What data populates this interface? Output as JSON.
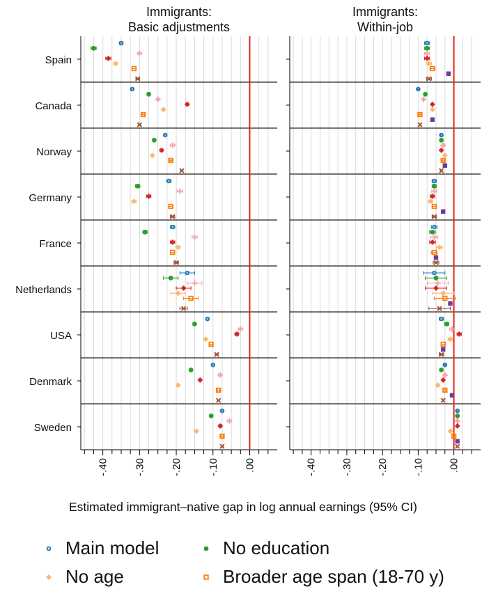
{
  "chart_data": {
    "type": "scatter",
    "xlabel": "Estimated immigrant–native gap in log annual earnings (95% CI)",
    "xlim": [
      -0.46,
      0.075
    ],
    "xticks": [
      -0.4,
      -0.3,
      -0.2,
      -0.1,
      0.0
    ],
    "xtick_labels": [
      "-.40",
      "-.30",
      "-.20",
      "-.10",
      ".00"
    ],
    "reference_line": 0,
    "grid": true,
    "countries": [
      "Spain",
      "Canada",
      "Norway",
      "Germany",
      "France",
      "Netherlands",
      "USA",
      "Denmark",
      "Sweden"
    ],
    "series": [
      {
        "name": "Main model",
        "key": "main",
        "color": "#1f77b4",
        "marker": "circle-open"
      },
      {
        "name": "No education",
        "key": "noedu",
        "color": "#2ca02c",
        "marker": "circle"
      },
      {
        "name": "",
        "key": "s3",
        "color": "#f4a0a8",
        "marker": "plus"
      },
      {
        "name": "",
        "key": "s4",
        "color": "#d62728",
        "marker": "diamond"
      },
      {
        "name": "No age",
        "key": "noage",
        "color": "#fdb870",
        "marker": "diamond-light"
      },
      {
        "name": "Broader age span (18-70 y)",
        "key": "broad",
        "color": "#ff7f0e",
        "marker": "square-open"
      },
      {
        "name": "",
        "key": "s7",
        "color": "#6a3d9a",
        "marker": "square"
      },
      {
        "name": "",
        "key": "s8",
        "color": "#a0522d",
        "marker": "x"
      }
    ],
    "panels": [
      {
        "title_line1": "Immigrants:",
        "title_line2": "Basic adjustments",
        "data": {
          "Spain": {
            "main": [
              -0.35,
              0.005
            ],
            "noedu": [
              -0.425,
              0.007
            ],
            "s3": [
              -0.3,
              0.005
            ],
            "s4": [
              -0.385,
              0.007
            ],
            "noage": [
              -0.365,
              0.005
            ],
            "broad": [
              -0.315,
              0.005
            ],
            "s8": [
              -0.305,
              0.005
            ]
          },
          "Canada": {
            "main": [
              -0.32,
              0.003
            ],
            "noedu": [
              -0.275,
              0.003
            ],
            "s3": [
              -0.25,
              0.003
            ],
            "s4": [
              -0.17,
              0.004
            ],
            "noage": [
              -0.235,
              0.003
            ],
            "broad": [
              -0.29,
              0.003
            ],
            "s8": [
              -0.3,
              0.003
            ]
          },
          "Norway": {
            "main": [
              -0.23,
              0.003
            ],
            "noedu": [
              -0.26,
              0.003
            ],
            "s3": [
              -0.21,
              0.006
            ],
            "s4": [
              -0.24,
              0.004
            ],
            "noage": [
              -0.265,
              0.003
            ],
            "broad": [
              -0.215,
              0.003
            ],
            "s8": [
              -0.185,
              0.003
            ]
          },
          "Germany": {
            "main": [
              -0.22,
              0.006
            ],
            "noedu": [
              -0.305,
              0.006
            ],
            "s3": [
              -0.19,
              0.008
            ],
            "s4": [
              -0.275,
              0.006
            ],
            "noage": [
              -0.315,
              0.006
            ],
            "broad": [
              -0.215,
              0.006
            ],
            "s8": [
              -0.21,
              0.006
            ]
          },
          "France": {
            "main": [
              -0.21,
              0.006
            ],
            "noedu": [
              -0.285,
              0.006
            ],
            "s3": [
              -0.15,
              0.007
            ],
            "s4": [
              -0.21,
              0.006
            ],
            "noage": [
              -0.195,
              0.006
            ],
            "broad": [
              -0.21,
              0.006
            ],
            "s8": [
              -0.2,
              0.006
            ]
          },
          "Netherlands": {
            "main": [
              -0.17,
              0.02
            ],
            "noedu": [
              -0.215,
              0.02
            ],
            "s3": [
              -0.15,
              0.02
            ],
            "s4": [
              -0.18,
              0.02
            ],
            "noage": [
              -0.195,
              0.02
            ],
            "broad": [
              -0.16,
              0.02
            ],
            "s8": [
              -0.18,
              0.01
            ]
          },
          "USA": {
            "main": [
              -0.115,
              0.004
            ],
            "noedu": [
              -0.15,
              0.004
            ],
            "s3": [
              -0.025,
              0.005
            ],
            "s4": [
              -0.035,
              0.005
            ],
            "noage": [
              -0.12,
              0.004
            ],
            "broad": [
              -0.105,
              0.004
            ],
            "s8": [
              -0.09,
              0.004
            ]
          },
          "Denmark": {
            "main": [
              -0.1,
              0.003
            ],
            "noedu": [
              -0.16,
              0.003
            ],
            "s3": [
              -0.08,
              0.005
            ],
            "s4": [
              -0.135,
              0.003
            ],
            "noage": [
              -0.195,
              0.003
            ],
            "broad": [
              -0.085,
              0.003
            ],
            "s8": [
              -0.085,
              0.003
            ]
          },
          "Sweden": {
            "main": [
              -0.075,
              0.003
            ],
            "noedu": [
              -0.105,
              0.003
            ],
            "s3": [
              -0.055,
              0.005
            ],
            "s4": [
              -0.08,
              0.004
            ],
            "noage": [
              -0.145,
              0.003
            ],
            "broad": [
              -0.075,
              0.003
            ],
            "s8": [
              -0.075,
              0.003
            ]
          }
        }
      },
      {
        "title_line1": "Immigrants:",
        "title_line2": "Within-job",
        "data": {
          "Spain": {
            "main": [
              -0.075,
              0.007
            ],
            "noedu": [
              -0.075,
              0.007
            ],
            "s3": [
              -0.075,
              0.007
            ],
            "s4": [
              -0.075,
              0.007
            ],
            "noage": [
              -0.07,
              0.007
            ],
            "broad": [
              -0.06,
              0.007
            ],
            "s7": [
              -0.015,
              0.003
            ],
            "s8": [
              -0.07,
              0.007
            ]
          },
          "Canada": {
            "main": [
              -0.1,
              0.002
            ],
            "noedu": [
              -0.08,
              0.002
            ],
            "s3": [
              -0.085,
              0.002
            ],
            "s4": [
              -0.06,
              0.002
            ],
            "noage": [
              -0.06,
              0.002
            ],
            "broad": [
              -0.095,
              0.002
            ],
            "s7": [
              -0.06,
              0.002
            ],
            "s8": [
              -0.095,
              0.002
            ]
          },
          "Norway": {
            "main": [
              -0.035,
              0.002
            ],
            "noedu": [
              -0.035,
              0.002
            ],
            "s3": [
              -0.03,
              0.004
            ],
            "s4": [
              -0.035,
              0.002
            ],
            "noage": [
              -0.025,
              0.002
            ],
            "broad": [
              -0.03,
              0.002
            ],
            "s7": [
              -0.025,
              0.002
            ],
            "s8": [
              -0.035,
              0.002
            ]
          },
          "Germany": {
            "main": [
              -0.055,
              0.006
            ],
            "noedu": [
              -0.055,
              0.006
            ],
            "s3": [
              -0.055,
              0.007
            ],
            "s4": [
              -0.06,
              0.006
            ],
            "noage": [
              -0.065,
              0.006
            ],
            "broad": [
              -0.055,
              0.006
            ],
            "s7": [
              -0.03,
              0.003
            ],
            "s8": [
              -0.055,
              0.006
            ]
          },
          "France": {
            "main": [
              -0.055,
              0.008
            ],
            "noedu": [
              -0.06,
              0.008
            ],
            "s3": [
              -0.055,
              0.01
            ],
            "s4": [
              -0.06,
              0.008
            ],
            "noage": [
              -0.04,
              0.008
            ],
            "broad": [
              -0.055,
              0.008
            ],
            "s7": [
              -0.05,
              0.004
            ],
            "s8": [
              -0.05,
              0.008
            ]
          },
          "Netherlands": {
            "main": [
              -0.055,
              0.03
            ],
            "noedu": [
              -0.05,
              0.03
            ],
            "s3": [
              -0.045,
              0.03
            ],
            "s4": [
              -0.05,
              0.03
            ],
            "noage": [
              -0.03,
              0.03
            ],
            "broad": [
              -0.025,
              0.03
            ],
            "s7": [
              -0.01,
              0.003
            ],
            "s8": [
              -0.04,
              0.03
            ]
          },
          "USA": {
            "main": [
              -0.035,
              0.006
            ],
            "noedu": [
              -0.02,
              0.006
            ],
            "s3": [
              -0.005,
              0.007
            ],
            "s4": [
              0.015,
              0.006
            ],
            "noage": [
              -0.01,
              0.006
            ],
            "broad": [
              -0.03,
              0.006
            ],
            "s7": [
              -0.03,
              0.003
            ],
            "s8": [
              -0.035,
              0.006
            ]
          },
          "Denmark": {
            "main": [
              -0.025,
              0.002
            ],
            "noedu": [
              -0.035,
              0.002
            ],
            "s3": [
              -0.025,
              0.004
            ],
            "s4": [
              -0.03,
              0.003
            ],
            "noage": [
              -0.045,
              0.002
            ],
            "broad": [
              -0.025,
              0.002
            ],
            "s7": [
              -0.005,
              0.003
            ],
            "s8": [
              -0.03,
              0.002
            ]
          },
          "Sweden": {
            "main": [
              0.01,
              0.002
            ],
            "noedu": [
              0.01,
              0.002
            ],
            "s3": [
              0.01,
              0.003
            ],
            "s4": [
              0.01,
              0.002
            ],
            "noage": [
              -0.01,
              0.002
            ],
            "broad": [
              0.0,
              0.002
            ],
            "s7": [
              0.01,
              0.002
            ],
            "s8": [
              0.01,
              0.002
            ]
          }
        }
      }
    ]
  },
  "legend": [
    {
      "label": "Main model",
      "key": "main"
    },
    {
      "label": "No education",
      "key": "noedu"
    },
    {
      "label": "No age",
      "key": "noage"
    },
    {
      "label": "Broader age span (18-70 y)",
      "key": "broad"
    }
  ]
}
